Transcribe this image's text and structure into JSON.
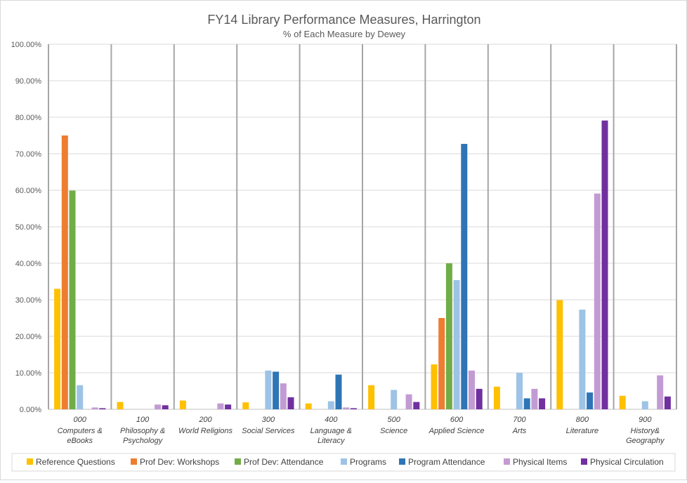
{
  "chart_data": {
    "type": "bar",
    "title": "FY14 Library Performance Measures, Harrington",
    "subtitle": "% of Each Measure by Dewey",
    "xlabel": "",
    "ylabel": "",
    "ylim": [
      0,
      100
    ],
    "y_ticks": [
      "0.00%",
      "10.00%",
      "20.00%",
      "30.00%",
      "40.00%",
      "50.00%",
      "60.00%",
      "70.00%",
      "80.00%",
      "90.00%",
      "100.00%"
    ],
    "grid": true,
    "legend_position": "bottom",
    "categories": [
      {
        "code": "000",
        "lines": [
          "Computers &",
          "eBooks"
        ]
      },
      {
        "code": "100",
        "lines": [
          "Philosophy &",
          "Psychology"
        ]
      },
      {
        "code": "200",
        "lines": [
          "World Religions"
        ]
      },
      {
        "code": "300",
        "lines": [
          "Social Services"
        ]
      },
      {
        "code": "400",
        "lines": [
          "Language &",
          "Literacy"
        ]
      },
      {
        "code": "500",
        "lines": [
          "Science"
        ]
      },
      {
        "code": "600",
        "lines": [
          "Applied Science"
        ]
      },
      {
        "code": "700",
        "lines": [
          "Arts"
        ]
      },
      {
        "code": "800",
        "lines": [
          "Literature"
        ]
      },
      {
        "code": "900",
        "lines": [
          "History&",
          "Geography"
        ]
      }
    ],
    "series": [
      {
        "name": "Reference Questions",
        "color": "#FFC000",
        "values": [
          33.0,
          2.0,
          2.4,
          1.9,
          1.6,
          6.6,
          12.3,
          6.2,
          29.9,
          3.7
        ]
      },
      {
        "name": "Prof Dev: Workshops",
        "color": "#ED7D31",
        "values": [
          75.0,
          0,
          0,
          0,
          0,
          0,
          25.0,
          0,
          0,
          0
        ]
      },
      {
        "name": "Prof Dev: Attendance",
        "color": "#70AD47",
        "values": [
          59.9,
          0,
          0,
          0,
          0,
          0,
          40.0,
          0,
          0,
          0
        ]
      },
      {
        "name": "Programs",
        "color": "#9DC3E6",
        "values": [
          6.6,
          0,
          0,
          10.6,
          2.2,
          5.3,
          35.4,
          10.0,
          27.3,
          2.2
        ]
      },
      {
        "name": "Program Attendance",
        "color": "#2E75B6",
        "values": [
          0,
          0,
          0,
          10.3,
          9.5,
          0,
          72.7,
          3.0,
          4.6,
          0
        ]
      },
      {
        "name": "Physical Items",
        "color": "#C39BD3",
        "values": [
          0.5,
          1.3,
          1.6,
          7.1,
          0.5,
          4.1,
          10.6,
          5.6,
          59.1,
          9.3
        ]
      },
      {
        "name": "Physical Circulation",
        "color": "#7030A0",
        "values": [
          0.3,
          1.1,
          1.3,
          3.3,
          0.3,
          2.0,
          5.6,
          3.0,
          79.1,
          3.5
        ]
      }
    ]
  }
}
